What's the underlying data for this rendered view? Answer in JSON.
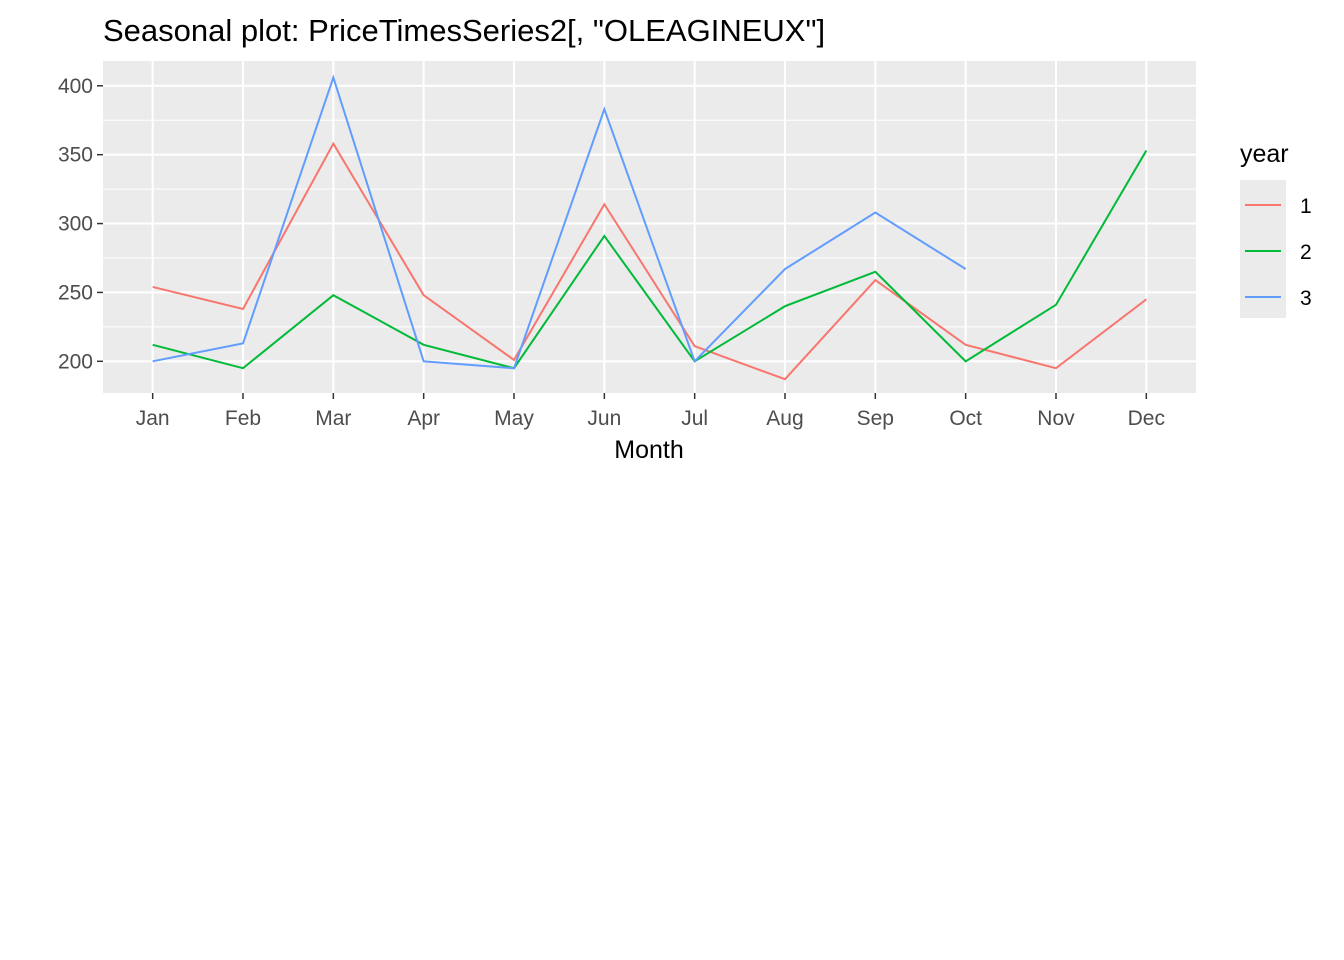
{
  "chart_data": {
    "type": "line",
    "title": "Seasonal plot: PriceTimesSeries2[, \"OLEAGINEUX\"]",
    "xlabel": "Month",
    "ylabel": "",
    "categories": [
      "Jan",
      "Feb",
      "Mar",
      "Apr",
      "May",
      "Jun",
      "Jul",
      "Aug",
      "Sep",
      "Oct",
      "Nov",
      "Dec"
    ],
    "yticks": [
      200,
      250,
      300,
      350,
      400
    ],
    "ylim": [
      177,
      418
    ],
    "grid": true,
    "legend": {
      "title": "year",
      "position": "right"
    },
    "series": [
      {
        "name": "1",
        "color": "#F8766D",
        "values": [
          254,
          238,
          358,
          248,
          201,
          314,
          211,
          187,
          259,
          212,
          195,
          245
        ]
      },
      {
        "name": "2",
        "color": "#00BA38",
        "values": [
          212,
          195,
          248,
          212,
          195,
          291,
          200,
          240,
          265,
          200,
          241,
          353
        ]
      },
      {
        "name": "3",
        "color": "#619CFF",
        "values": [
          200,
          213,
          406,
          200,
          195,
          383,
          200,
          267,
          308,
          267,
          null,
          null
        ]
      }
    ]
  }
}
